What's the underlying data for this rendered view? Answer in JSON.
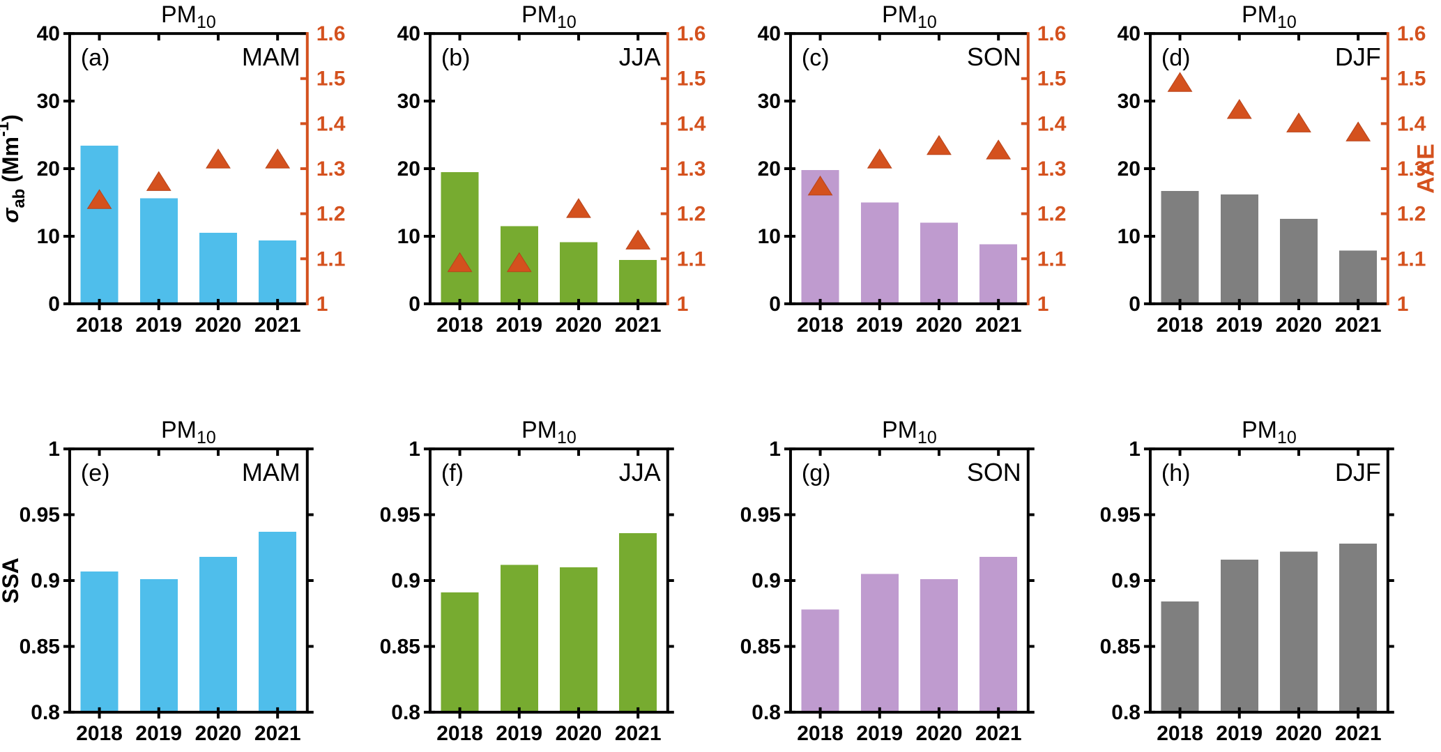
{
  "figure_meta": {
    "background": "#ffffff",
    "axis_color": "#000000",
    "accent_orange": "#d4511e",
    "categories": [
      "2018",
      "2019",
      "2020",
      "2021"
    ],
    "left_axis_label_top_row": "sigma_ab (Mm^-1)",
    "left_axis_label_bottom_row": "SSA",
    "right_axis_label_top_row": "AAE"
  },
  "chart_data": [
    {
      "id": "a",
      "type": "bar",
      "panel_label": "(a)",
      "season": "MAM",
      "title_main": "PM",
      "title_sub": "10",
      "categories": [
        "2018",
        "2019",
        "2020",
        "2021"
      ],
      "bar_series": {
        "name": "sigma_ab",
        "values": [
          23.4,
          15.6,
          10.5,
          9.4
        ],
        "color": "#4fbeeb"
      },
      "scatter_series": {
        "name": "AAE",
        "marker": "triangle",
        "values": [
          1.23,
          1.27,
          1.32,
          1.32
        ],
        "color": "#d4511e"
      },
      "y_left": {
        "lim": [
          0,
          40
        ],
        "ticks": [
          0,
          10,
          20,
          30,
          40
        ],
        "tick_labels": [
          "0",
          "10",
          "20",
          "30",
          "40"
        ],
        "label_segments": [
          {
            "text": "σ",
            "style": "italic"
          },
          {
            "text": "ab",
            "style": "sub"
          },
          {
            "text": " (Mm",
            "style": "normal"
          },
          {
            "text": "-1",
            "style": "sup"
          },
          {
            "text": ")",
            "style": "normal"
          }
        ]
      },
      "y_right": {
        "lim": [
          1,
          1.6
        ],
        "ticks": [
          1,
          1.1,
          1.2,
          1.3,
          1.4,
          1.5,
          1.6
        ],
        "tick_labels": [
          "1",
          "1.1",
          "1.2",
          "1.3",
          "1.4",
          "1.5",
          "1.6"
        ]
      }
    },
    {
      "id": "b",
      "type": "bar",
      "panel_label": "(b)",
      "season": "JJA",
      "title_main": "PM",
      "title_sub": "10",
      "categories": [
        "2018",
        "2019",
        "2020",
        "2021"
      ],
      "bar_series": {
        "name": "sigma_ab",
        "values": [
          19.5,
          11.5,
          9.1,
          6.5
        ],
        "color": "#77ab30"
      },
      "scatter_series": {
        "name": "AAE",
        "marker": "triangle",
        "values": [
          1.09,
          1.09,
          1.21,
          1.14
        ],
        "color": "#d4511e"
      },
      "y_left": {
        "lim": [
          0,
          40
        ],
        "ticks": [
          0,
          10,
          20,
          30,
          40
        ],
        "tick_labels": [
          "0",
          "10",
          "20",
          "30",
          "40"
        ]
      },
      "y_right": {
        "lim": [
          1,
          1.6
        ],
        "ticks": [
          1,
          1.1,
          1.2,
          1.3,
          1.4,
          1.5,
          1.6
        ],
        "tick_labels": [
          "1",
          "1.1",
          "1.2",
          "1.3",
          "1.4",
          "1.5",
          "1.6"
        ]
      }
    },
    {
      "id": "c",
      "type": "bar",
      "panel_label": "(c)",
      "season": "SON",
      "title_main": "PM",
      "title_sub": "10",
      "categories": [
        "2018",
        "2019",
        "2020",
        "2021"
      ],
      "bar_series": {
        "name": "sigma_ab",
        "values": [
          19.8,
          15.0,
          12.0,
          8.8
        ],
        "color": "#bf9bcf"
      },
      "scatter_series": {
        "name": "AAE",
        "marker": "triangle",
        "values": [
          1.26,
          1.32,
          1.35,
          1.34
        ],
        "color": "#d4511e"
      },
      "y_left": {
        "lim": [
          0,
          40
        ],
        "ticks": [
          0,
          10,
          20,
          30,
          40
        ],
        "tick_labels": [
          "0",
          "10",
          "20",
          "30",
          "40"
        ]
      },
      "y_right": {
        "lim": [
          1,
          1.6
        ],
        "ticks": [
          1,
          1.1,
          1.2,
          1.3,
          1.4,
          1.5,
          1.6
        ],
        "tick_labels": [
          "1",
          "1.1",
          "1.2",
          "1.3",
          "1.4",
          "1.5",
          "1.6"
        ]
      }
    },
    {
      "id": "d",
      "type": "bar",
      "panel_label": "(d)",
      "season": "DJF",
      "title_main": "PM",
      "title_sub": "10",
      "categories": [
        "2018",
        "2019",
        "2020",
        "2021"
      ],
      "bar_series": {
        "name": "sigma_ab",
        "values": [
          16.7,
          16.2,
          12.6,
          7.9
        ],
        "color": "#7f7f7f"
      },
      "scatter_series": {
        "name": "AAE",
        "marker": "triangle",
        "values": [
          1.49,
          1.43,
          1.4,
          1.38
        ],
        "color": "#d4511e"
      },
      "y_left": {
        "lim": [
          0,
          40
        ],
        "ticks": [
          0,
          10,
          20,
          30,
          40
        ],
        "tick_labels": [
          "0",
          "10",
          "20",
          "30",
          "40"
        ]
      },
      "y_right": {
        "lim": [
          1,
          1.6
        ],
        "ticks": [
          1,
          1.1,
          1.2,
          1.3,
          1.4,
          1.5,
          1.6
        ],
        "tick_labels": [
          "1",
          "1.1",
          "1.2",
          "1.3",
          "1.4",
          "1.5",
          "1.6"
        ],
        "label": "AAE"
      }
    },
    {
      "id": "e",
      "type": "bar",
      "panel_label": "(e)",
      "season": "MAM",
      "title_main": "PM",
      "title_sub": "10",
      "categories": [
        "2018",
        "2019",
        "2020",
        "2021"
      ],
      "bar_series": {
        "name": "SSA",
        "values": [
          0.907,
          0.901,
          0.918,
          0.937
        ],
        "color": "#4fbeeb"
      },
      "y_left": {
        "lim": [
          0.8,
          1.0
        ],
        "ticks": [
          0.8,
          0.85,
          0.9,
          0.95,
          1.0
        ],
        "tick_labels": [
          "0.8",
          "0.85",
          "0.9",
          "0.95",
          "1"
        ],
        "label_segments": [
          {
            "text": "SSA",
            "style": "normal"
          }
        ]
      }
    },
    {
      "id": "f",
      "type": "bar",
      "panel_label": "(f)",
      "season": "JJA",
      "title_main": "PM",
      "title_sub": "10",
      "categories": [
        "2018",
        "2019",
        "2020",
        "2021"
      ],
      "bar_series": {
        "name": "SSA",
        "values": [
          0.891,
          0.912,
          0.91,
          0.936
        ],
        "color": "#77ab30"
      },
      "y_left": {
        "lim": [
          0.8,
          1.0
        ],
        "ticks": [
          0.8,
          0.85,
          0.9,
          0.95,
          1.0
        ],
        "tick_labels": [
          "0.8",
          "0.85",
          "0.9",
          "0.95",
          "1"
        ]
      }
    },
    {
      "id": "g",
      "type": "bar",
      "panel_label": "(g)",
      "season": "SON",
      "title_main": "PM",
      "title_sub": "10",
      "categories": [
        "2018",
        "2019",
        "2020",
        "2021"
      ],
      "bar_series": {
        "name": "SSA",
        "values": [
          0.878,
          0.905,
          0.901,
          0.918
        ],
        "color": "#bf9bcf"
      },
      "y_left": {
        "lim": [
          0.8,
          1.0
        ],
        "ticks": [
          0.8,
          0.85,
          0.9,
          0.95,
          1.0
        ],
        "tick_labels": [
          "0.8",
          "0.85",
          "0.9",
          "0.95",
          "1"
        ]
      }
    },
    {
      "id": "h",
      "type": "bar",
      "panel_label": "(h)",
      "season": "DJF",
      "title_main": "PM",
      "title_sub": "10",
      "categories": [
        "2018",
        "2019",
        "2020",
        "2021"
      ],
      "bar_series": {
        "name": "SSA",
        "values": [
          0.884,
          0.916,
          0.922,
          0.928
        ],
        "color": "#7f7f7f"
      },
      "y_left": {
        "lim": [
          0.8,
          1.0
        ],
        "ticks": [
          0.8,
          0.85,
          0.9,
          0.95,
          1.0
        ],
        "tick_labels": [
          "0.8",
          "0.85",
          "0.9",
          "0.95",
          "1"
        ]
      }
    }
  ]
}
